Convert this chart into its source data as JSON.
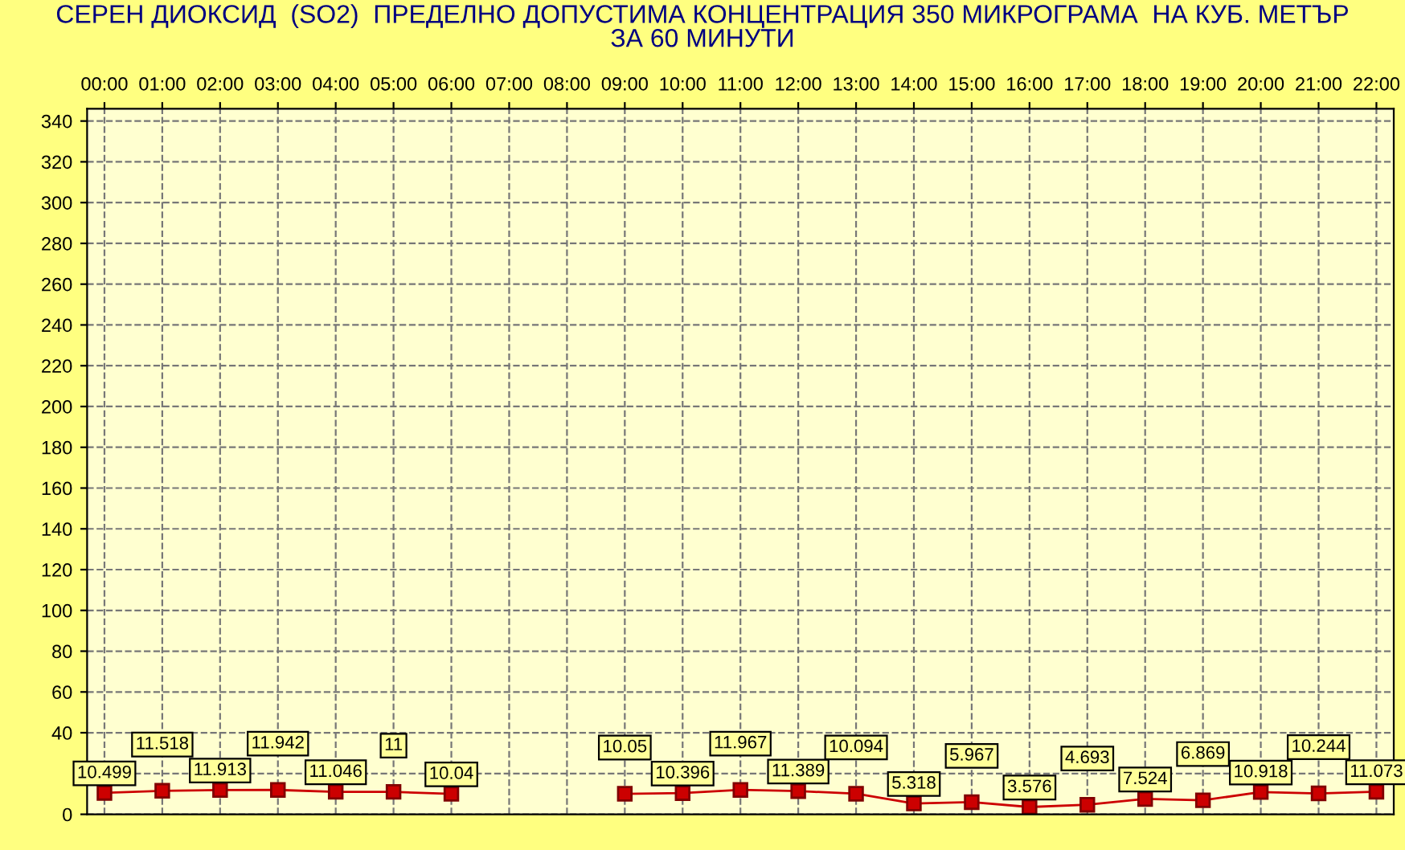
{
  "chart_data": {
    "type": "line",
    "title": "СЕРЕН ДИОКСИД  (SO2)  ПРЕДЕЛНО ДОПУСТИМА КОНЦЕНТРАЦИЯ 350 МИКРОГРАМА  НА КУБ. МЕТЪР\nЗА 60 МИНУТИ",
    "categories": [
      "00:00",
      "01:00",
      "02:00",
      "03:00",
      "04:00",
      "05:00",
      "06:00",
      "07:00",
      "08:00",
      "09:00",
      "10:00",
      "11:00",
      "12:00",
      "13:00",
      "14:00",
      "15:00",
      "16:00",
      "17:00",
      "18:00",
      "19:00",
      "20:00",
      "21:00",
      "22:00"
    ],
    "series": [
      {
        "color": "#cc0000",
        "values": [
          10.499,
          11.518,
          11.913,
          11.942,
          11.046,
          11,
          10.04,
          null,
          null,
          10.05,
          10.396,
          11.967,
          11.389,
          10.094,
          5.318,
          5.967,
          3.576,
          4.693,
          7.524,
          6.869,
          10.918,
          10.244,
          11.073
        ]
      }
    ],
    "ylim": [
      0,
      346
    ],
    "yticks": [
      0,
      {
        "value": 20,
        "label": null
      },
      40,
      60,
      80,
      100,
      120,
      140,
      160,
      180,
      200,
      220,
      240,
      260,
      280,
      300,
      320,
      340
    ],
    "grid": true,
    "marker": "square",
    "line_style": "solid",
    "data_labels": true,
    "legend": false
  }
}
